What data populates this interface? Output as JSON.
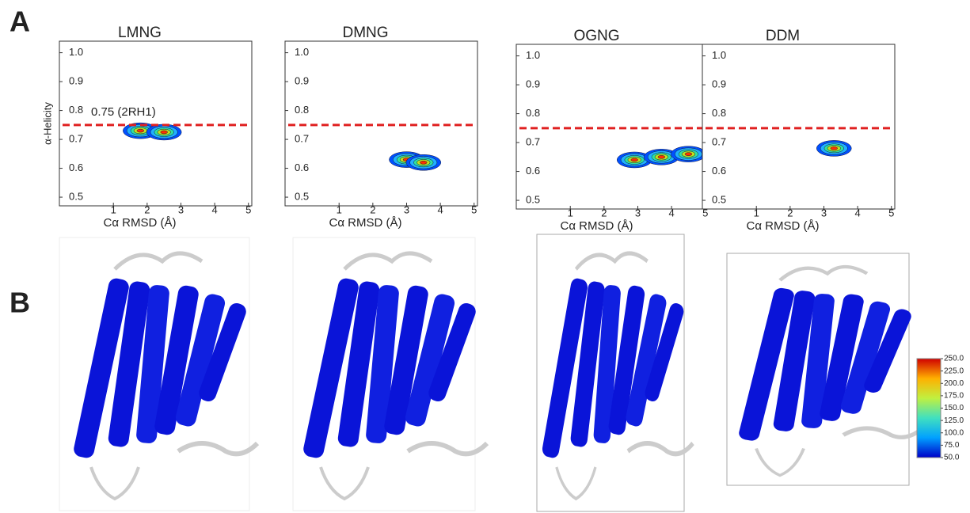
{
  "panel_labels": [
    "A",
    "B"
  ],
  "chart_data": [
    {
      "type": "contour",
      "title": "LMNG",
      "xlabel": "Cα RMSD (Å)",
      "ylabel": "α-Helicity",
      "annotation": "0.75 (2RH1)",
      "ref_line": 0.75,
      "x": [
        1.8,
        2.5
      ],
      "values": [
        0.73,
        0.725
      ],
      "xlim": [
        -0.6,
        5.1
      ],
      "ylim": [
        0.47,
        1.04
      ],
      "xticks": [
        1,
        2,
        3,
        4,
        5
      ],
      "yticks": [
        0.5,
        0.6,
        0.7,
        0.8,
        0.9,
        {
          "value": 1,
          "label": "1.0"
        }
      ]
    },
    {
      "type": "contour",
      "title": "DMNG",
      "xlabel": "Cα RMSD (Å)",
      "ref_line": 0.75,
      "x": [
        3.0,
        3.5
      ],
      "values": [
        0.63,
        0.62
      ],
      "xlim": [
        -0.6,
        5.1
      ],
      "ylim": [
        0.47,
        1.04
      ],
      "xticks": [
        1,
        2,
        3,
        4,
        5
      ],
      "yticks": [
        0.5,
        0.6,
        0.7,
        0.8,
        0.9,
        {
          "value": 1,
          "label": "1.0"
        }
      ]
    },
    {
      "type": "contour",
      "title": "OGNG",
      "xlabel": "Cα RMSD (Å)",
      "ref_line": 0.75,
      "x": [
        2.9,
        3.7,
        4.5
      ],
      "values": [
        0.64,
        0.65,
        0.66
      ],
      "xlim": [
        -0.6,
        5.1
      ],
      "ylim": [
        0.47,
        1.04
      ],
      "xticks": [
        1,
        2,
        3,
        4,
        5
      ],
      "yticks": [
        0.5,
        0.6,
        0.7,
        0.8,
        0.9,
        {
          "value": 1,
          "label": "1.0"
        }
      ]
    },
    {
      "type": "contour",
      "title": "DDM",
      "xlabel": "Cα RMSD (Å)",
      "ref_line": 0.75,
      "x": [
        3.3
      ],
      "values": [
        0.68
      ],
      "xlim": [
        -0.6,
        5.1
      ],
      "ylim": [
        0.47,
        1.04
      ],
      "xticks": [
        1,
        2,
        3,
        4,
        5
      ],
      "yticks": [
        0.5,
        0.6,
        0.7,
        0.8,
        0.9,
        {
          "value": 1,
          "label": "1.0"
        }
      ]
    }
  ],
  "colorbar": {
    "lim": [
      50,
      250
    ],
    "colors": [
      "#0000c8",
      "#00a0ff",
      "#40e0c0",
      "#c0f040",
      "#ffb000",
      "#d00000"
    ],
    "ticks": [
      {
        "value": 250,
        "label": "250.0"
      },
      {
        "value": 225,
        "label": "225.0"
      },
      {
        "value": 200,
        "label": "200.0"
      },
      {
        "value": 175,
        "label": "175.0"
      },
      {
        "value": 150,
        "label": "150.0"
      },
      {
        "value": 125,
        "label": "125.0"
      },
      {
        "value": 100,
        "label": "100.0"
      },
      {
        "value": 75,
        "label": "75.0"
      },
      {
        "value": 50,
        "label": "50.0"
      }
    ]
  }
}
